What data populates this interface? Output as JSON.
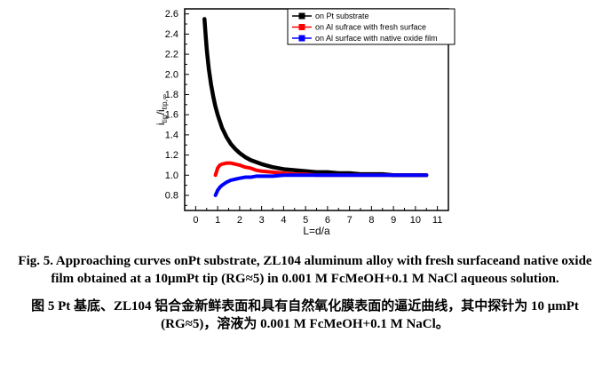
{
  "chart_data": {
    "type": "line",
    "title": "",
    "xlabel": "L=d/a",
    "ylabel": "itip/itip,∞",
    "ylabel_parts": [
      {
        "t": "i",
        "sub": false
      },
      {
        "t": "tip",
        "sub": true
      },
      {
        "t": "/i",
        "sub": false
      },
      {
        "t": "tip,∞",
        "sub": true
      }
    ],
    "xlim": [
      -0.5,
      11.5
    ],
    "ylim": [
      0.65,
      2.65
    ],
    "xticks": [
      0,
      1,
      2,
      3,
      4,
      5,
      6,
      7,
      8,
      9,
      10,
      11
    ],
    "yticks": [
      0.8,
      1.0,
      1.2,
      1.4,
      1.6,
      1.8,
      2.0,
      2.2,
      2.4,
      2.6
    ],
    "x_minor": [
      0.5,
      1.5,
      2.5,
      3.5,
      4.5,
      5.5,
      6.5,
      7.5,
      8.5,
      9.5,
      10.5
    ],
    "y_minor": [
      0.7,
      0.9,
      1.1,
      1.3,
      1.5,
      1.7,
      1.9,
      2.1,
      2.3,
      2.5
    ],
    "grid": false,
    "legend_position": "top-center-inside",
    "series": [
      {
        "name": "on Pt substrate",
        "color": "#000000",
        "width": 4.5,
        "x": [
          0.4,
          0.45,
          0.5,
          0.55,
          0.6,
          0.7,
          0.8,
          0.9,
          1.0,
          1.2,
          1.4,
          1.6,
          1.8,
          2.0,
          2.25,
          2.5,
          2.75,
          3.0,
          3.5,
          4.0,
          4.5,
          5.0,
          5.5,
          6.0,
          6.5,
          7.0,
          7.5,
          8.0,
          8.5,
          9.0,
          9.5,
          10.0,
          10.5
        ],
        "y": [
          2.55,
          2.4,
          2.26,
          2.15,
          2.05,
          1.9,
          1.78,
          1.68,
          1.6,
          1.47,
          1.38,
          1.31,
          1.26,
          1.22,
          1.18,
          1.15,
          1.13,
          1.11,
          1.08,
          1.06,
          1.05,
          1.04,
          1.03,
          1.03,
          1.02,
          1.02,
          1.01,
          1.01,
          1.01,
          1.0,
          1.0,
          1.0,
          1.0
        ]
      },
      {
        "name": "on Al sufrace with fresh surface",
        "color": "#ff0000",
        "width": 4,
        "x": [
          0.9,
          1.0,
          1.1,
          1.2,
          1.4,
          1.6,
          1.8,
          2.0,
          2.25,
          2.5,
          2.75,
          3.0,
          3.5,
          4.0,
          4.5,
          5.0,
          5.5,
          6.0,
          6.5,
          7.0,
          7.5,
          8.0,
          8.5,
          9.0,
          9.5,
          10.0,
          10.5
        ],
        "y": [
          1.0,
          1.07,
          1.1,
          1.11,
          1.12,
          1.12,
          1.11,
          1.1,
          1.08,
          1.07,
          1.05,
          1.04,
          1.03,
          1.02,
          1.01,
          1.01,
          1.0,
          1.0,
          1.0,
          1.0,
          1.0,
          1.0,
          1.0,
          1.0,
          1.0,
          1.0,
          1.0
        ]
      },
      {
        "name": "on Al surface with native oxide film",
        "color": "#0000ff",
        "width": 4,
        "x": [
          0.9,
          1.0,
          1.1,
          1.2,
          1.4,
          1.6,
          1.8,
          2.0,
          2.25,
          2.5,
          2.75,
          3.0,
          3.5,
          4.0,
          4.5,
          5.0,
          5.5,
          6.0,
          6.5,
          7.0,
          7.5,
          8.0,
          8.5,
          9.0,
          9.5,
          10.0,
          10.5
        ],
        "y": [
          0.8,
          0.85,
          0.88,
          0.9,
          0.93,
          0.95,
          0.96,
          0.97,
          0.98,
          0.98,
          0.99,
          0.99,
          0.99,
          1.0,
          1.0,
          1.0,
          1.0,
          1.0,
          1.0,
          1.0,
          1.0,
          1.0,
          1.0,
          1.0,
          1.0,
          1.0,
          1.0
        ]
      }
    ]
  },
  "captions": {
    "english": "Fig. 5. Approaching curves onPt substrate, ZL104 aluminum alloy with fresh surfaceand native oxide film obtained at a 10μmPt tip (RG≈5) in 0.001 M FcMeOH+0.1 M NaCl aqueous solution.",
    "chinese": "图 5 Pt 基底、ZL104 铝合金新鲜表面和具有自然氧化膜表面的逼近曲线，其中探针为 10 μmPt (RG≈5)，溶液为 0.001 M FcMeOH+0.1 M NaCl。"
  }
}
